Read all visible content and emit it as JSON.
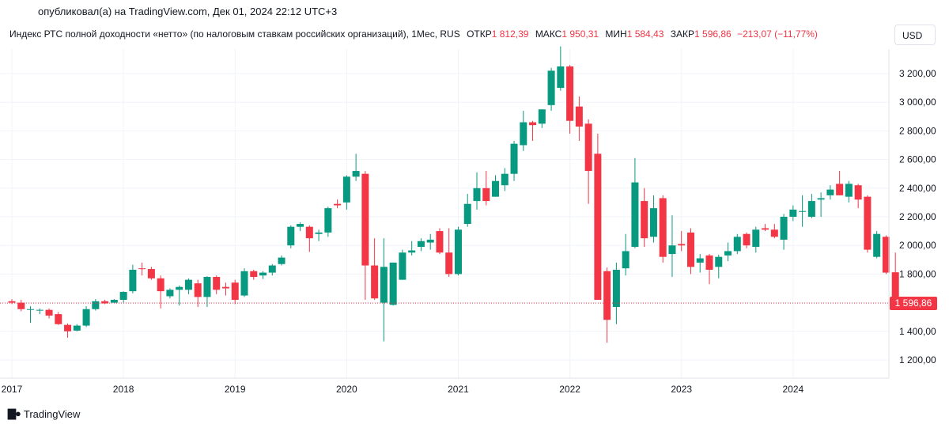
{
  "header": {
    "published": "опубликовал(а) на TradingView.com, Дек 01, 2024 22:12 UTC+3"
  },
  "legend": {
    "symbol": "Индекс РТС полной доходности «нетто» (по налоговым ставкам российских организаций), 1Мес, RUS",
    "open_label": "ОТКР",
    "open_value": "1 812,39",
    "high_label": "МАКС",
    "high_value": "1 950,31",
    "low_label": "МИН",
    "low_value": "1 584,43",
    "close_label": "ЗАКР",
    "close_value": "1 596,86",
    "change": "−213,07 (−11,77%)"
  },
  "currency_button": "USD",
  "price_badge": "1 596,86",
  "footer": {
    "brand": "TradingView"
  },
  "colors": {
    "up": "#089981",
    "down": "#f23645",
    "grid": "#f0f3fa",
    "text": "#131722"
  },
  "chart_data": {
    "type": "candlestick",
    "title": "Индекс РТС полной доходности «нетто» (по налоговым ставкам российских организаций), 1Мес, RUS",
    "interval": "1 month",
    "currency": "USD",
    "ylim": [
      1100,
      3400
    ],
    "y_ticks": [
      1200,
      1400,
      1600,
      1800,
      2000,
      2200,
      2400,
      2600,
      2800,
      3000,
      3200
    ],
    "y_tick_labels": [
      "1 200,00",
      "1 400,00",
      "1 600,00",
      "1 800,00",
      "2 000,00",
      "2 200,00",
      "2 400,00",
      "2 600,00",
      "2 800,00",
      "3 000,00",
      "3 200,00"
    ],
    "x_ticks": [
      {
        "index": 0,
        "label": "2017"
      },
      {
        "index": 12,
        "label": "2018"
      },
      {
        "index": 24,
        "label": "2019"
      },
      {
        "index": 36,
        "label": "2020"
      },
      {
        "index": 48,
        "label": "2021"
      },
      {
        "index": 60,
        "label": "2022"
      },
      {
        "index": 72,
        "label": "2023"
      },
      {
        "index": 84,
        "label": "2024"
      }
    ],
    "last_price": 1596.86,
    "candles": [
      {
        "o": 1610,
        "h": 1625,
        "l": 1590,
        "c": 1600
      },
      {
        "o": 1600,
        "h": 1620,
        "l": 1540,
        "c": 1555
      },
      {
        "o": 1555,
        "h": 1575,
        "l": 1460,
        "c": 1555
      },
      {
        "o": 1550,
        "h": 1560,
        "l": 1520,
        "c": 1550
      },
      {
        "o": 1550,
        "h": 1560,
        "l": 1490,
        "c": 1510
      },
      {
        "o": 1520,
        "h": 1535,
        "l": 1445,
        "c": 1450
      },
      {
        "o": 1445,
        "h": 1455,
        "l": 1355,
        "c": 1400
      },
      {
        "o": 1405,
        "h": 1450,
        "l": 1400,
        "c": 1440
      },
      {
        "o": 1440,
        "h": 1575,
        "l": 1430,
        "c": 1555
      },
      {
        "o": 1555,
        "h": 1625,
        "l": 1545,
        "c": 1610
      },
      {
        "o": 1610,
        "h": 1620,
        "l": 1590,
        "c": 1595
      },
      {
        "o": 1600,
        "h": 1625,
        "l": 1595,
        "c": 1620
      },
      {
        "o": 1620,
        "h": 1680,
        "l": 1600,
        "c": 1675
      },
      {
        "o": 1680,
        "h": 1865,
        "l": 1665,
        "c": 1830
      },
      {
        "o": 1840,
        "h": 1880,
        "l": 1790,
        "c": 1835
      },
      {
        "o": 1835,
        "h": 1850,
        "l": 1760,
        "c": 1770
      },
      {
        "o": 1770,
        "h": 1790,
        "l": 1560,
        "c": 1680
      },
      {
        "o": 1645,
        "h": 1700,
        "l": 1630,
        "c": 1690
      },
      {
        "o": 1690,
        "h": 1720,
        "l": 1580,
        "c": 1710
      },
      {
        "o": 1690,
        "h": 1770,
        "l": 1660,
        "c": 1760
      },
      {
        "o": 1735,
        "h": 1760,
        "l": 1570,
        "c": 1640
      },
      {
        "o": 1640,
        "h": 1785,
        "l": 1570,
        "c": 1780
      },
      {
        "o": 1780,
        "h": 1790,
        "l": 1660,
        "c": 1690
      },
      {
        "o": 1710,
        "h": 1740,
        "l": 1650,
        "c": 1700
      },
      {
        "o": 1740,
        "h": 1760,
        "l": 1590,
        "c": 1620
      },
      {
        "o": 1650,
        "h": 1840,
        "l": 1640,
        "c": 1820
      },
      {
        "o": 1820,
        "h": 1830,
        "l": 1760,
        "c": 1780
      },
      {
        "o": 1790,
        "h": 1820,
        "l": 1765,
        "c": 1810
      },
      {
        "o": 1810,
        "h": 1870,
        "l": 1790,
        "c": 1860
      },
      {
        "o": 1870,
        "h": 1930,
        "l": 1860,
        "c": 1915
      },
      {
        "o": 2000,
        "h": 2140,
        "l": 1980,
        "c": 2130
      },
      {
        "o": 2130,
        "h": 2160,
        "l": 2100,
        "c": 2150
      },
      {
        "o": 2130,
        "h": 2140,
        "l": 1955,
        "c": 2050
      },
      {
        "o": 2080,
        "h": 2110,
        "l": 2030,
        "c": 2090
      },
      {
        "o": 2090,
        "h": 2270,
        "l": 2060,
        "c": 2260
      },
      {
        "o": 2290,
        "h": 2320,
        "l": 2260,
        "c": 2280
      },
      {
        "o": 2300,
        "h": 2490,
        "l": 2250,
        "c": 2480
      },
      {
        "o": 2480,
        "h": 2640,
        "l": 2450,
        "c": 2520
      },
      {
        "o": 2500,
        "h": 2520,
        "l": 1620,
        "c": 1860
      },
      {
        "o": 1860,
        "h": 2050,
        "l": 1620,
        "c": 1630
      },
      {
        "o": 1600,
        "h": 2050,
        "l": 1330,
        "c": 1850
      },
      {
        "o": 1585,
        "h": 1880,
        "l": 1580,
        "c": 1880
      },
      {
        "o": 1760,
        "h": 1970,
        "l": 1760,
        "c": 1950
      },
      {
        "o": 1950,
        "h": 2030,
        "l": 1930,
        "c": 1965
      },
      {
        "o": 1990,
        "h": 2050,
        "l": 1960,
        "c": 2030
      },
      {
        "o": 2020,
        "h": 2080,
        "l": 1970,
        "c": 2040
      },
      {
        "o": 2100,
        "h": 2120,
        "l": 1940,
        "c": 1950
      },
      {
        "o": 1950,
        "h": 2120,
        "l": 1780,
        "c": 1800
      },
      {
        "o": 1800,
        "h": 2130,
        "l": 1790,
        "c": 2110
      },
      {
        "o": 2150,
        "h": 2360,
        "l": 2130,
        "c": 2290
      },
      {
        "o": 2310,
        "h": 2510,
        "l": 2250,
        "c": 2400
      },
      {
        "o": 2400,
        "h": 2520,
        "l": 2280,
        "c": 2310
      },
      {
        "o": 2340,
        "h": 2490,
        "l": 2340,
        "c": 2450
      },
      {
        "o": 2420,
        "h": 2540,
        "l": 2380,
        "c": 2500
      },
      {
        "o": 2500,
        "h": 2730,
        "l": 2450,
        "c": 2710
      },
      {
        "o": 2700,
        "h": 2940,
        "l": 2660,
        "c": 2860
      },
      {
        "o": 2860,
        "h": 2870,
        "l": 2730,
        "c": 2840
      },
      {
        "o": 2850,
        "h": 2950,
        "l": 2820,
        "c": 2950
      },
      {
        "o": 2980,
        "h": 3240,
        "l": 2940,
        "c": 3220
      },
      {
        "o": 3100,
        "h": 3390,
        "l": 3080,
        "c": 3250
      },
      {
        "o": 3250,
        "h": 3260,
        "l": 2780,
        "c": 2870
      },
      {
        "o": 2970,
        "h": 3040,
        "l": 2730,
        "c": 2830
      },
      {
        "o": 2850,
        "h": 2880,
        "l": 2290,
        "c": 2520
      },
      {
        "o": 2640,
        "h": 2780,
        "l": 1620,
        "c": 1620
      },
      {
        "o": 1820,
        "h": 1845,
        "l": 1320,
        "c": 1480
      },
      {
        "o": 1570,
        "h": 1880,
        "l": 1450,
        "c": 1830
      },
      {
        "o": 1840,
        "h": 2080,
        "l": 1790,
        "c": 1960
      },
      {
        "o": 1990,
        "h": 2610,
        "l": 1980,
        "c": 2440
      },
      {
        "o": 2310,
        "h": 2400,
        "l": 1990,
        "c": 2050
      },
      {
        "o": 2060,
        "h": 2350,
        "l": 2020,
        "c": 2260
      },
      {
        "o": 2330,
        "h": 2350,
        "l": 1880,
        "c": 1920
      },
      {
        "o": 1940,
        "h": 2210,
        "l": 1780,
        "c": 2000
      },
      {
        "o": 2010,
        "h": 2100,
        "l": 1960,
        "c": 2000
      },
      {
        "o": 2090,
        "h": 2120,
        "l": 1800,
        "c": 1850
      },
      {
        "o": 1880,
        "h": 1940,
        "l": 1810,
        "c": 1910
      },
      {
        "o": 1930,
        "h": 1940,
        "l": 1730,
        "c": 1830
      },
      {
        "o": 1850,
        "h": 1935,
        "l": 1770,
        "c": 1920
      },
      {
        "o": 1930,
        "h": 2020,
        "l": 1890,
        "c": 1960
      },
      {
        "o": 1960,
        "h": 2080,
        "l": 1940,
        "c": 2060
      },
      {
        "o": 2080,
        "h": 2090,
        "l": 1980,
        "c": 2000
      },
      {
        "o": 1990,
        "h": 2130,
        "l": 1950,
        "c": 2110
      },
      {
        "o": 2120,
        "h": 2150,
        "l": 2100,
        "c": 2110
      },
      {
        "o": 2110,
        "h": 2150,
        "l": 2050,
        "c": 2060
      },
      {
        "o": 2040,
        "h": 2220,
        "l": 1970,
        "c": 2200
      },
      {
        "o": 2200,
        "h": 2280,
        "l": 2170,
        "c": 2250
      },
      {
        "o": 2240,
        "h": 2350,
        "l": 2130,
        "c": 2240
      },
      {
        "o": 2200,
        "h": 2360,
        "l": 2190,
        "c": 2310
      },
      {
        "o": 2320,
        "h": 2370,
        "l": 2200,
        "c": 2330
      },
      {
        "o": 2350,
        "h": 2420,
        "l": 2320,
        "c": 2390
      },
      {
        "o": 2430,
        "h": 2520,
        "l": 2350,
        "c": 2350
      },
      {
        "o": 2340,
        "h": 2450,
        "l": 2300,
        "c": 2430
      },
      {
        "o": 2420,
        "h": 2430,
        "l": 2260,
        "c": 2320
      },
      {
        "o": 2340,
        "h": 2350,
        "l": 1950,
        "c": 1970
      },
      {
        "o": 1920,
        "h": 2100,
        "l": 1910,
        "c": 2080
      },
      {
        "o": 2060,
        "h": 2070,
        "l": 1800,
        "c": 1810
      },
      {
        "o": 1812.39,
        "h": 1950.31,
        "l": 1584.43,
        "c": 1596.86
      }
    ]
  }
}
